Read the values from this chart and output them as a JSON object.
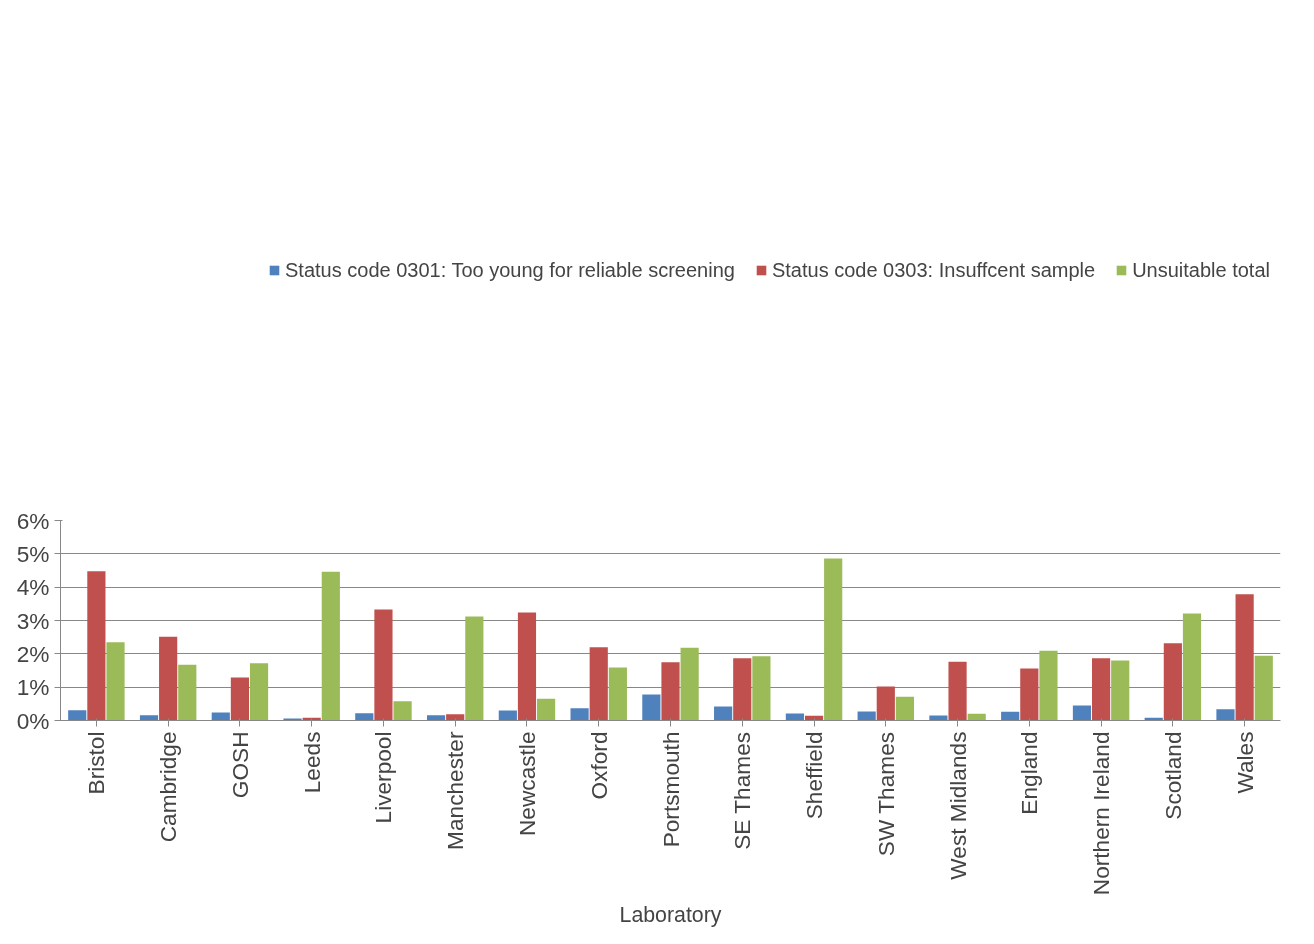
{
  "chart_data": {
    "type": "bar",
    "xlabel": "Laboratory",
    "categories": [
      "Bristol",
      "Cambridge",
      "GOSH",
      "Leeds",
      "Liverpool",
      "Manchester",
      "Newcastle",
      "Oxford",
      "Portsmouth",
      "SE Thames",
      "Sheffield",
      "SW Thames",
      "West Midlands",
      "England",
      "Northern Ireland",
      "Scotland",
      "Wales"
    ],
    "series": [
      {
        "name": "Status code 0301: Too young for reliable screening",
        "color": "#4f81bd",
        "values": [
          0.31,
          0.16,
          0.24,
          0.06,
          0.22,
          0.16,
          0.3,
          0.37,
          0.78,
          0.42,
          0.21,
          0.27,
          0.15,
          0.26,
          0.45,
          0.08,
          0.34
        ]
      },
      {
        "name": "Status code 0303: Insuffcent sample",
        "color": "#c0504d",
        "values": [
          4.48,
          2.51,
          1.29,
          0.08,
          3.33,
          0.19,
          3.24,
          2.2,
          1.75,
          1.87,
          0.14,
          1.02,
          1.76,
          1.56,
          1.87,
          2.32,
          3.79
        ]
      },
      {
        "name": "Unsuitable total",
        "color": "#9bbb59",
        "values": [
          2.35,
          1.67,
          1.72,
          4.46,
          0.58,
          3.12,
          0.65,
          1.59,
          2.18,
          1.93,
          4.86,
          0.71,
          0.2,
          2.09,
          1.8,
          3.21,
          1.94
        ]
      }
    ],
    "ylim": [
      0,
      6
    ],
    "yticks": [
      {
        "value": 0,
        "label": "0%"
      },
      {
        "value": 1,
        "label": "1%"
      },
      {
        "value": 2,
        "label": "2%"
      },
      {
        "value": 3,
        "label": "3%"
      },
      {
        "value": 4,
        "label": "4%"
      },
      {
        "value": 5,
        "label": "5%"
      },
      {
        "value": 6,
        "label": "6%"
      }
    ],
    "grid": "y",
    "legend": "top"
  }
}
